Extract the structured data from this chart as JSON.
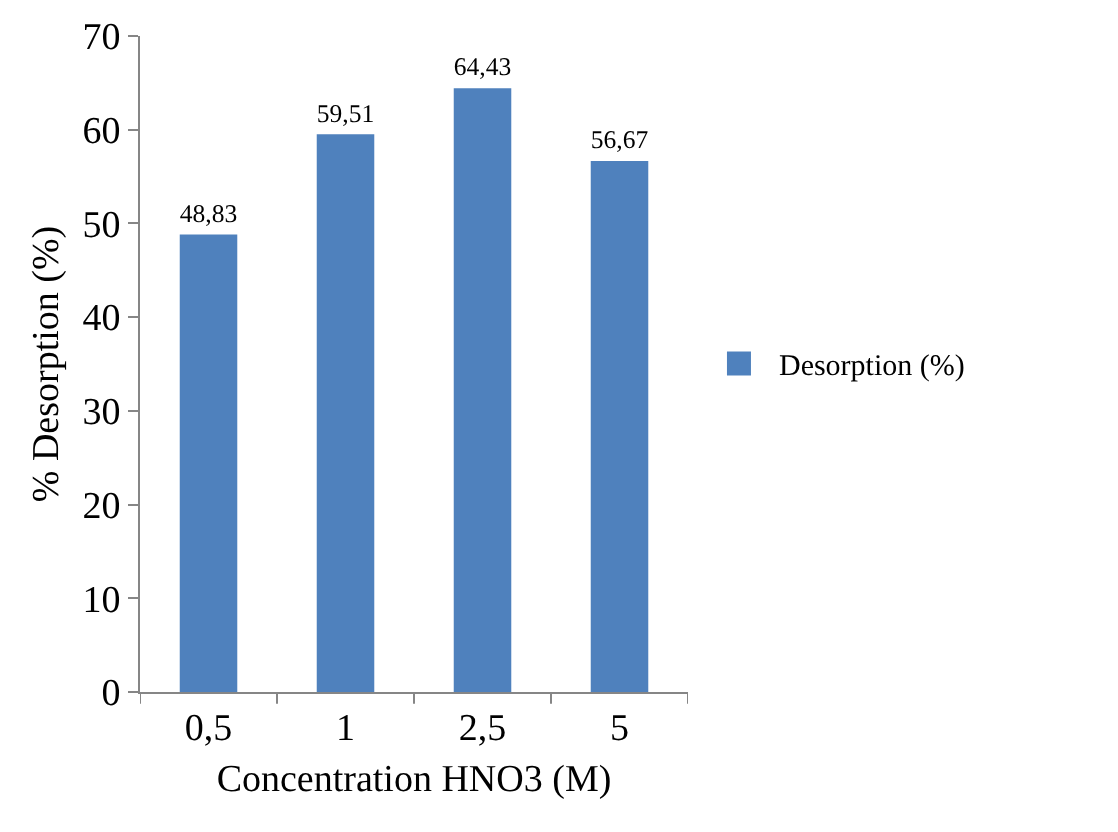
{
  "chart_data": {
    "type": "bar",
    "xlabel": "Concentration HNO3 (M)",
    "ylabel": "% Desorption (%)",
    "categories": [
      "0,5",
      "1",
      "2,5",
      "5"
    ],
    "series": [
      {
        "name": "Desorption (%)",
        "color": "#4f81bd",
        "values": [
          48.83,
          59.51,
          64.43,
          56.67
        ],
        "value_labels": [
          "48,83",
          "59,51",
          "64,43",
          "56,67"
        ]
      }
    ],
    "ylim": [
      0,
      70
    ],
    "yticks": [
      0,
      10,
      20,
      30,
      40,
      50,
      60,
      70
    ],
    "grid": false,
    "legend": "right"
  }
}
